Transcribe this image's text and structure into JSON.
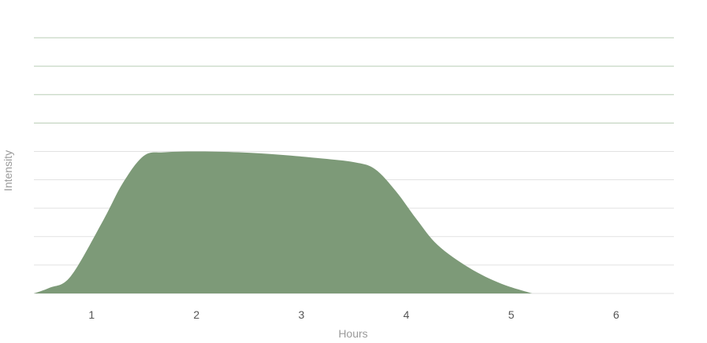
{
  "chart_data": {
    "type": "area",
    "xlabel": "Hours",
    "ylabel": "Intensity",
    "x_ticks": [
      "1",
      "2",
      "3",
      "4",
      "5",
      "6"
    ],
    "xlim": [
      0.45,
      6.55
    ],
    "ylim": [
      0,
      9
    ],
    "grid": true,
    "grid_lines": 9,
    "fill_color": "#7d9a78",
    "grid_color_upper": "#b9cdb5",
    "grid_color_lower": "#e2e2e2",
    "series": [
      {
        "x": [
          0.45,
          0.6,
          0.8,
          1.1,
          1.3,
          1.5,
          1.7,
          2.0,
          2.4,
          2.8,
          3.2,
          3.5,
          3.7,
          3.9,
          4.1,
          4.3,
          4.6,
          4.9,
          5.2
        ],
        "y": [
          0,
          0.2,
          0.6,
          2.5,
          3.9,
          4.85,
          4.97,
          5.0,
          4.97,
          4.88,
          4.75,
          4.62,
          4.38,
          3.6,
          2.6,
          1.7,
          0.9,
          0.35,
          0
        ]
      }
    ]
  }
}
